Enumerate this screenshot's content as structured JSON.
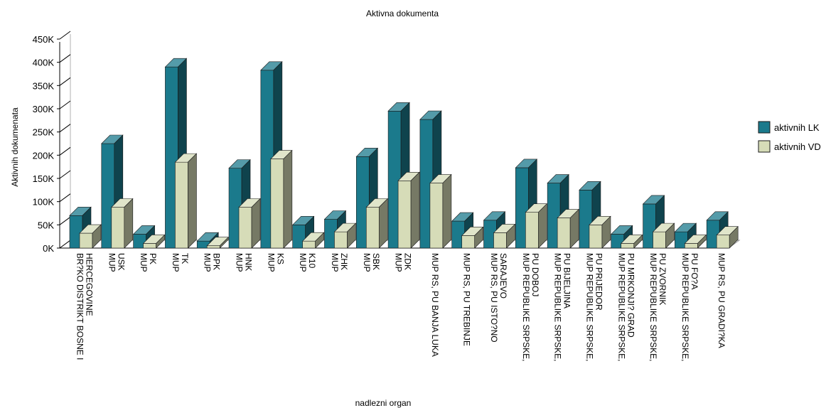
{
  "chart_data": {
    "type": "bar",
    "title": "Aktivna dokumenta",
    "xlabel": "nadlezni organ",
    "ylabel": "Aktivnih dokumenata",
    "ylim": [
      0,
      450000
    ],
    "yticks": [
      0,
      50000,
      100000,
      150000,
      200000,
      250000,
      300000,
      350000,
      400000,
      450000
    ],
    "ytick_labels": [
      "0K",
      "50K",
      "100K",
      "150K",
      "200K",
      "250K",
      "300K",
      "350K",
      "400K",
      "450K"
    ],
    "grid": false,
    "legend_position": "right",
    "categories": [
      [
        "BR?KO DISTRIKT BOSNE I",
        "HERCEGOVINE"
      ],
      [
        "MUP",
        "USK"
      ],
      [
        "MUP",
        "PK"
      ],
      [
        "MUP",
        "TK"
      ],
      [
        "MUP",
        "BPK"
      ],
      [
        "MUP",
        "HNK"
      ],
      [
        "MUP",
        "KS"
      ],
      [
        "MUP",
        "K10"
      ],
      [
        "MUP",
        "ZHK"
      ],
      [
        "MUP",
        "SBK"
      ],
      [
        "MUP",
        "ZDK"
      ],
      [
        "MUP RS, PU BANJA LUKA"
      ],
      [
        "MUP RS, PU TREBINJE"
      ],
      [
        "MUP RS, PU ISTO?NO",
        "SARAJEVO"
      ],
      [
        "MUP REPUBLIKE SRPSKE,",
        "PU DOBOJ"
      ],
      [
        "MUP REPUBLIKE SRPSKE,",
        "PU BIJELJINA"
      ],
      [
        "MUP REPUBLIKE SRPSKE,",
        "PU PRIJEDOR"
      ],
      [
        "MUP REPUBLIKE SRPSKE,",
        "PU MRKONJI? GRAD"
      ],
      [
        "MUP REPUBLIKE SRPSKE,",
        "PU ZVORNIK"
      ],
      [
        "MUP REPUBLIKE SRPSKE,",
        "PU FO?A"
      ],
      [
        "MUP RS, PU GRADI?KA"
      ]
    ],
    "series": [
      {
        "name": "aktivnih LK",
        "color": "#1b7a8c",
        "values": [
          70000,
          225000,
          30000,
          390000,
          15000,
          172000,
          383000,
          50000,
          62000,
          197000,
          295000,
          277000,
          58000,
          60000,
          173000,
          140000,
          125000,
          30000,
          95000,
          35000,
          60000
        ]
      },
      {
        "name": "aktivnih VD",
        "color": "#d6dcb8",
        "values": [
          32000,
          88000,
          10000,
          185000,
          5000,
          88000,
          192000,
          15000,
          35000,
          88000,
          145000,
          140000,
          27000,
          33000,
          77000,
          65000,
          50000,
          10000,
          35000,
          10000,
          28000
        ]
      }
    ]
  }
}
